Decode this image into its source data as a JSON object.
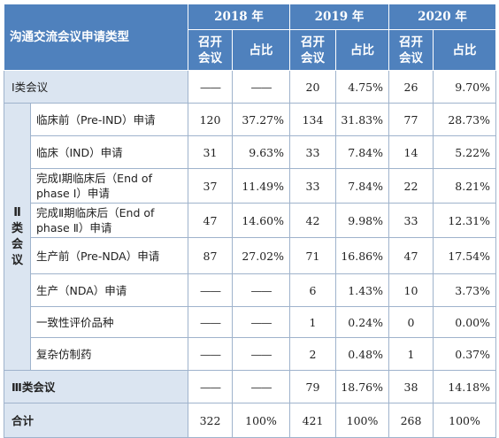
{
  "header": {
    "type_label": "沟通交流会议申请类型",
    "years": [
      "2018 年",
      "2019 年",
      "2020 年"
    ],
    "sub_count": "召开\n会议",
    "sub_count_l1": "召开",
    "sub_count_l2": "会议",
    "sub_pct": "占比"
  },
  "cat1": {
    "label": "Ⅰ类会议",
    "values": [
      "——",
      "——",
      "20",
      "4.75%",
      "26",
      "9.70%"
    ]
  },
  "cat2": {
    "label_chars": [
      "Ⅱ",
      "类",
      "会",
      "议"
    ],
    "rows": [
      {
        "label": "临床前（Pre-IND）申请",
        "values": [
          "120",
          "37.27%",
          "134",
          "31.83%",
          "77",
          "28.73%"
        ]
      },
      {
        "label": "临床（IND）申请",
        "values": [
          "31",
          "9.63%",
          "33",
          "7.84%",
          "14",
          "5.22%"
        ]
      },
      {
        "label": "完成Ⅰ期临床后（End of phase Ⅰ）申请",
        "values": [
          "37",
          "11.49%",
          "33",
          "7.84%",
          "22",
          "8.21%"
        ]
      },
      {
        "label": "完成Ⅱ期临床后（End of phase Ⅱ）申请",
        "values": [
          "47",
          "14.60%",
          "42",
          "9.98%",
          "33",
          "12.31%"
        ]
      },
      {
        "label": "生产前（Pre-NDA）申请",
        "values": [
          "87",
          "27.02%",
          "71",
          "16.86%",
          "47",
          "17.54%"
        ]
      },
      {
        "label": "生产（NDA）申请",
        "values": [
          "——",
          "——",
          "6",
          "1.43%",
          "10",
          "3.73%"
        ]
      },
      {
        "label": "一致性评价品种",
        "values": [
          "——",
          "——",
          "1",
          "0.24%",
          "0",
          "0.00%"
        ]
      },
      {
        "label": "复杂仿制药",
        "values": [
          "——",
          "——",
          "2",
          "0.48%",
          "1",
          "0.37%"
        ]
      }
    ]
  },
  "cat3": {
    "label": "Ⅲ类会议",
    "values": [
      "——",
      "——",
      "79",
      "18.76%",
      "38",
      "14.18%"
    ]
  },
  "total": {
    "label": "合计",
    "values": [
      "322",
      "100%",
      "421",
      "100%",
      "268",
      "100%"
    ]
  },
  "colors": {
    "header_bg": "#4f81bd",
    "header_text": "#ffffff",
    "label_bg": "#dbe5f1",
    "border": "#9fb3cc"
  }
}
